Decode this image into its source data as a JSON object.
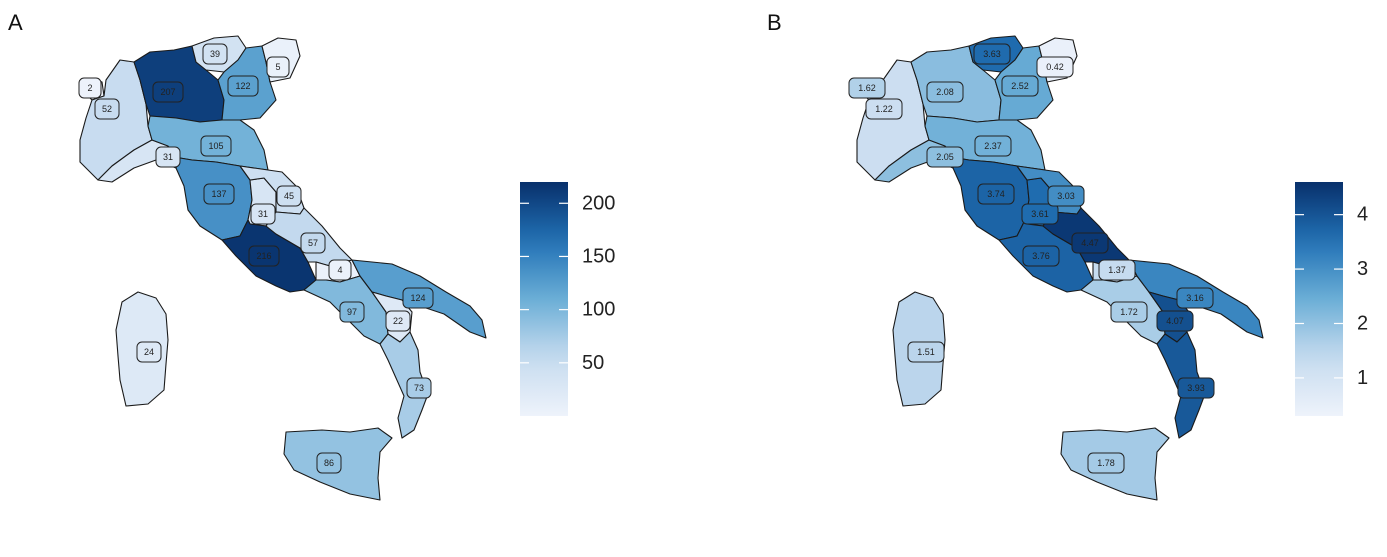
{
  "panels": [
    {
      "letter": "A",
      "scale": {
        "min": 0,
        "max": 220,
        "ticks": [
          50,
          100,
          150,
          200
        ]
      },
      "regions": [
        {
          "id": "valle-daosta",
          "value": 2,
          "label": "2"
        },
        {
          "id": "piemonte",
          "value": 52,
          "label": "52"
        },
        {
          "id": "lombardia",
          "value": 207,
          "label": "207"
        },
        {
          "id": "trentino",
          "value": 39,
          "label": "39"
        },
        {
          "id": "veneto",
          "value": 122,
          "label": "122"
        },
        {
          "id": "friuli",
          "value": 5,
          "label": "5"
        },
        {
          "id": "liguria",
          "value": 31,
          "label": "31"
        },
        {
          "id": "emilia-romagna",
          "value": 105,
          "label": "105"
        },
        {
          "id": "toscana",
          "value": 137,
          "label": "137"
        },
        {
          "id": "umbria",
          "value": 31,
          "label": "31"
        },
        {
          "id": "marche",
          "value": 45,
          "label": "45"
        },
        {
          "id": "lazio",
          "value": 216,
          "label": "216"
        },
        {
          "id": "abruzzo",
          "value": 57,
          "label": "57"
        },
        {
          "id": "molise",
          "value": 4,
          "label": "4"
        },
        {
          "id": "campania",
          "value": 97,
          "label": "97"
        },
        {
          "id": "puglia",
          "value": 124,
          "label": "124"
        },
        {
          "id": "basilicata",
          "value": 22,
          "label": "22"
        },
        {
          "id": "calabria",
          "value": 73,
          "label": "73"
        },
        {
          "id": "sicilia",
          "value": 86,
          "label": "86"
        },
        {
          "id": "sardegna",
          "value": 24,
          "label": "24"
        }
      ]
    },
    {
      "letter": "B",
      "scale": {
        "min": 0.3,
        "max": 4.6,
        "ticks": [
          1,
          2,
          3,
          4
        ]
      },
      "regions": [
        {
          "id": "valle-daosta",
          "value": 1.62,
          "label": "1.62"
        },
        {
          "id": "piemonte",
          "value": 1.22,
          "label": "1.22"
        },
        {
          "id": "lombardia",
          "value": 2.08,
          "label": "2.08"
        },
        {
          "id": "trentino",
          "value": 3.63,
          "label": "3.63"
        },
        {
          "id": "veneto",
          "value": 2.52,
          "label": "2.52"
        },
        {
          "id": "friuli",
          "value": 0.42,
          "label": "0.42"
        },
        {
          "id": "liguria",
          "value": 2.05,
          "label": "2.05"
        },
        {
          "id": "emilia-romagna",
          "value": 2.37,
          "label": "2.37"
        },
        {
          "id": "toscana",
          "value": 3.74,
          "label": "3.74"
        },
        {
          "id": "umbria",
          "value": 3.61,
          "label": "3.61"
        },
        {
          "id": "marche",
          "value": 3.03,
          "label": "3.03"
        },
        {
          "id": "lazio",
          "value": 3.76,
          "label": "3.76"
        },
        {
          "id": "abruzzo",
          "value": 4.47,
          "label": "4.47"
        },
        {
          "id": "molise",
          "value": 1.37,
          "label": "1.37"
        },
        {
          "id": "campania",
          "value": 1.72,
          "label": "1.72"
        },
        {
          "id": "puglia",
          "value": 3.16,
          "label": "3.16"
        },
        {
          "id": "basilicata",
          "value": 4.07,
          "label": "4.07"
        },
        {
          "id": "calabria",
          "value": 3.93,
          "label": "3.93"
        },
        {
          "id": "sicilia",
          "value": 1.78,
          "label": "1.78"
        },
        {
          "id": "sardegna",
          "value": 1.51,
          "label": "1.51"
        }
      ]
    }
  ],
  "colors": {
    "low": "#eef3fb",
    "high": "#08306b",
    "mid1": "#c6dbef",
    "mid2": "#6baed6",
    "mid3": "#2171b5"
  }
}
